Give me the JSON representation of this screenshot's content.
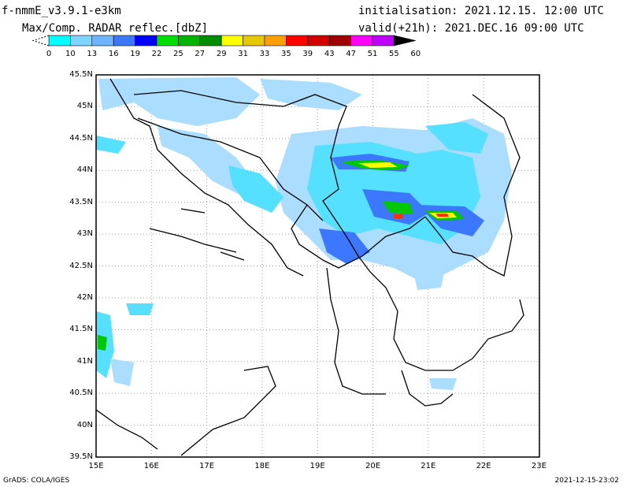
{
  "header": {
    "model": "f-nmmE_v3.9.1-e3km",
    "field": "Max/Comp. RADAR reflec.[dbZ]",
    "initialisation": "initialisation: 2021.12.15. 12:00 UTC",
    "valid": "valid(+21h): 2021.DEC.16 09:00 UTC"
  },
  "colorbar": {
    "ticks": [
      "0",
      "10",
      "13",
      "16",
      "19",
      "22",
      "25",
      "27",
      "29",
      "31",
      "33",
      "35",
      "39",
      "43",
      "47",
      "51",
      "55",
      "60"
    ],
    "colors": [
      "#00ffff",
      "#7fd4ff",
      "#6fb4ff",
      "#3c78ff",
      "#0000ff",
      "#00dd00",
      "#00b400",
      "#008c00",
      "#ffff00",
      "#e6c800",
      "#ffa000",
      "#ff0000",
      "#d20000",
      "#a00000",
      "#ff00ff",
      "#c000ff",
      "#000000"
    ]
  },
  "map": {
    "lat_labels": [
      "45.5N",
      "45N",
      "44.5N",
      "44N",
      "43.5N",
      "43N",
      "42.5N",
      "42N",
      "41.5N",
      "41N",
      "40.5N",
      "40N",
      "39.5N"
    ],
    "lon_labels": [
      "15E",
      "16E",
      "17E",
      "18E",
      "19E",
      "20E",
      "21E",
      "22E",
      "23E"
    ],
    "colors": {
      "land": "#ffffff",
      "border": "#000000",
      "grid": "#a0a0a0",
      "light": "#aaddff",
      "cyan": "#55e0ff",
      "blue": "#3c78ff",
      "green": "#00c800",
      "yellow": "#ffff00",
      "red": "#ff3000"
    }
  },
  "footer": {
    "left": "GrADS: COLA/IGES",
    "right": "2021-12-15-23:02"
  }
}
